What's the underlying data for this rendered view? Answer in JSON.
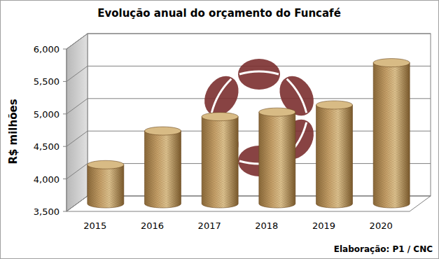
{
  "chart_data": {
    "type": "bar",
    "title": "Evolução anual do orçamento do Funcafé",
    "y_label": "R$ milhões",
    "note": "Elaboração: P1 / CNC",
    "categories": [
      "2015",
      "2016",
      "2017",
      "2018",
      "2019",
      "2020"
    ],
    "values": [
      4100,
      4620,
      4840,
      4910,
      5020,
      5670
    ],
    "color": "#c9a46c",
    "ylim": [
      3500,
      6000
    ],
    "yticks": [
      {
        "value": 3500,
        "label": "3,500"
      },
      {
        "value": 4000,
        "label": "4,000"
      },
      {
        "value": 4500,
        "label": "4,500"
      },
      {
        "value": 5000,
        "label": "5,000"
      },
      {
        "value": 5500,
        "label": "5,500"
      },
      {
        "value": 6000,
        "label": "6,000"
      }
    ],
    "grid": true
  }
}
